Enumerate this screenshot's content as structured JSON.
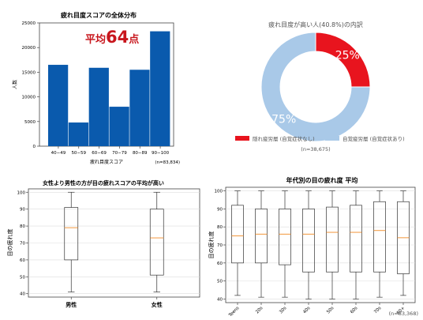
{
  "chart_data": [
    {
      "type": "bar",
      "title": "疲れ目度スコアの全体分布",
      "annotation": {
        "prefix": "平均",
        "value": "64",
        "suffix": "点"
      },
      "xlabel": "疲れ目度スコア",
      "ylabel": "人数",
      "categories": [
        "40−49",
        "50−59",
        "60−69",
        "70−79",
        "80−89",
        "90−100"
      ],
      "values": [
        16500,
        4800,
        15900,
        8000,
        15500,
        23300
      ],
      "ylim": [
        0,
        25000
      ],
      "yticks": [
        "0",
        "5000",
        "10000",
        "15000",
        "20000",
        "25000"
      ],
      "note": "(n=83,834)",
      "color": "#0a5aad"
    },
    {
      "type": "pie",
      "title": "疲れ目度が高い人(40.8%)の内訳",
      "slices": [
        {
          "label": "隠れ疲労層 (自覚症状なし)",
          "value": 25,
          "text": "25%",
          "color": "#e8141e"
        },
        {
          "label": "自覚疲労層 (自覚症状あり)",
          "value": 75,
          "text": "75%",
          "color": "#a9c9e8"
        }
      ],
      "note": "(n=38,675)"
    },
    {
      "type": "box",
      "title": "女性より男性の方が目の疲れスコアの平均が高い",
      "ylabel": "目の疲れ度",
      "categories": [
        "男性",
        "女性"
      ],
      "boxes": [
        {
          "min": 41,
          "q1": 60,
          "median": 79,
          "q3": 91,
          "max": 100
        },
        {
          "min": 41,
          "q1": 51,
          "median": 73,
          "q3": 90,
          "max": 100
        }
      ],
      "ylim": [
        38,
        102
      ],
      "yticks": [
        "40",
        "50",
        "60",
        "70",
        "80",
        "90",
        "100"
      ]
    },
    {
      "type": "box",
      "title": "年代別の目の疲れ度 平均",
      "ylabel": "目の疲れ度",
      "categories": [
        "Teens",
        "20s",
        "30s",
        "40s",
        "50s",
        "60s",
        "70s",
        "80+"
      ],
      "boxes": [
        {
          "min": 42,
          "q1": 60,
          "median": 75,
          "q3": 92,
          "max": 100
        },
        {
          "min": 41,
          "q1": 60,
          "median": 76,
          "q3": 90,
          "max": 100
        },
        {
          "min": 41,
          "q1": 59,
          "median": 76,
          "q3": 90,
          "max": 100
        },
        {
          "min": 40,
          "q1": 55,
          "median": 76,
          "q3": 90,
          "max": 100
        },
        {
          "min": 40,
          "q1": 55,
          "median": 77,
          "q3": 91,
          "max": 100
        },
        {
          "min": 40,
          "q1": 55,
          "median": 77,
          "q3": 92,
          "max": 100
        },
        {
          "min": 41,
          "q1": 55,
          "median": 78,
          "q3": 94,
          "max": 100
        },
        {
          "min": 42,
          "q1": 54,
          "median": 74,
          "q3": 94,
          "max": 100
        }
      ],
      "ylim": [
        38,
        102
      ],
      "yticks": [
        "40",
        "50",
        "60",
        "70",
        "80",
        "90",
        "100"
      ],
      "note": "(n=83,368)"
    }
  ]
}
